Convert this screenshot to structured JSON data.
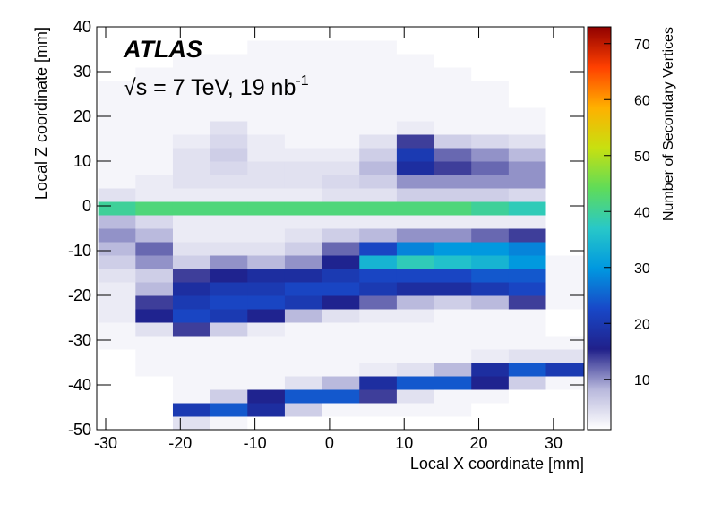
{
  "chart_data": {
    "type": "heatmap",
    "annotations": [
      "ATLAS",
      {
        "text": "√s = 7 TeV, 19 nb",
        "superscript": "-1"
      }
    ],
    "x_label": "Local X coordinate [mm]",
    "y_label": "Local Z coordinate [mm]",
    "colorbar_label": "Number of Secondary Vertices",
    "xlim": [
      -31.2,
      34.1
    ],
    "ylim": [
      -50,
      40
    ],
    "zlim": [
      1,
      73
    ],
    "xticks": [
      -30,
      -20,
      -10,
      0,
      10,
      20,
      30
    ],
    "yticks": [
      -50,
      -40,
      -30,
      -20,
      -10,
      0,
      10,
      20,
      30,
      40
    ],
    "zticks": [
      10,
      20,
      30,
      40,
      50,
      60,
      70
    ],
    "colorscale": [
      "#ffffff",
      "#b8b8dc",
      "#20208a",
      "#1848c8",
      "#0098e0",
      "#28c8c8",
      "#60dc58",
      "#c8e010",
      "#ffb000",
      "#ff4000",
      "#900000"
    ],
    "x_edges": [
      -31,
      -26,
      -21,
      -16,
      -11,
      -6,
      -1,
      4,
      9,
      14,
      19,
      24,
      29,
      34
    ],
    "y_edges": [
      -50,
      -47,
      -44,
      -41,
      -38,
      -35,
      -32,
      -29,
      -26,
      -23,
      -20,
      -17,
      -14,
      -11,
      -8,
      -5,
      -2,
      1,
      4,
      7,
      10,
      13,
      16,
      19,
      22,
      25,
      28,
      31,
      34,
      37,
      40
    ],
    "values": [
      [
        0,
        0,
        4,
        2,
        1,
        1,
        1,
        1,
        1,
        1,
        1,
        0,
        0
      ],
      [
        0,
        0,
        20,
        24,
        18,
        6,
        2,
        2,
        2,
        2,
        1,
        1,
        0
      ],
      [
        0,
        0,
        2,
        6,
        16,
        24,
        24,
        14,
        4,
        2,
        2,
        1,
        1
      ],
      [
        0,
        1,
        2,
        2,
        2,
        4,
        8,
        18,
        24,
        24,
        16,
        6,
        2
      ],
      [
        1,
        2,
        2,
        2,
        2,
        2,
        2,
        3,
        4,
        8,
        18,
        24,
        20
      ],
      [
        1,
        2,
        2,
        2,
        2,
        2,
        2,
        2,
        2,
        2,
        3,
        4,
        4
      ],
      [
        2,
        2,
        2,
        2,
        2,
        2,
        2,
        2,
        2,
        2,
        2,
        2,
        2
      ],
      [
        2,
        4,
        14,
        6,
        3,
        2,
        2,
        2,
        2,
        2,
        2,
        2,
        1
      ],
      [
        3,
        16,
        22,
        20,
        16,
        8,
        4,
        3,
        3,
        2,
        2,
        2,
        1
      ],
      [
        3,
        14,
        20,
        22,
        22,
        20,
        16,
        12,
        8,
        6,
        8,
        14,
        2
      ],
      [
        3,
        8,
        18,
        20,
        20,
        22,
        22,
        20,
        18,
        18,
        20,
        22,
        2
      ],
      [
        4,
        6,
        14,
        16,
        18,
        18,
        20,
        22,
        22,
        22,
        24,
        24,
        2
      ],
      [
        6,
        10,
        6,
        10,
        8,
        10,
        16,
        34,
        38,
        36,
        34,
        30,
        2
      ],
      [
        8,
        12,
        4,
        4,
        4,
        6,
        12,
        22,
        28,
        30,
        30,
        28,
        1
      ],
      [
        10,
        8,
        3,
        3,
        3,
        4,
        6,
        8,
        10,
        10,
        12,
        14,
        1
      ],
      [
        8,
        5,
        3,
        3,
        3,
        3,
        3,
        3,
        3,
        3,
        3,
        3,
        1
      ],
      [
        40,
        42,
        42,
        42,
        42,
        42,
        42,
        42,
        42,
        42,
        40,
        38,
        1
      ],
      [
        4,
        3,
        3,
        3,
        3,
        3,
        4,
        4,
        6,
        6,
        6,
        5,
        1
      ],
      [
        2,
        3,
        4,
        4,
        4,
        4,
        5,
        6,
        10,
        10,
        10,
        10,
        1
      ],
      [
        2,
        2,
        4,
        5,
        4,
        4,
        4,
        8,
        18,
        14,
        12,
        10,
        1
      ],
      [
        2,
        2,
        4,
        6,
        3,
        3,
        3,
        6,
        20,
        12,
        10,
        8,
        1
      ],
      [
        2,
        2,
        3,
        5,
        3,
        2,
        2,
        4,
        14,
        6,
        5,
        4,
        1
      ],
      [
        2,
        2,
        2,
        4,
        2,
        2,
        2,
        2,
        3,
        2,
        2,
        2,
        1
      ],
      [
        2,
        2,
        2,
        2,
        2,
        2,
        2,
        2,
        2,
        2,
        2,
        2,
        1
      ],
      [
        2,
        2,
        2,
        2,
        2,
        2,
        2,
        2,
        2,
        2,
        2,
        1,
        1
      ],
      [
        2,
        2,
        2,
        2,
        2,
        2,
        2,
        2,
        2,
        2,
        2,
        1,
        1
      ],
      [
        1,
        2,
        2,
        2,
        2,
        2,
        2,
        2,
        2,
        2,
        1,
        1,
        1
      ],
      [
        1,
        1,
        2,
        2,
        2,
        2,
        2,
        2,
        2,
        1,
        1,
        1,
        0
      ],
      [
        1,
        1,
        1,
        1,
        2,
        2,
        2,
        2,
        1,
        1,
        1,
        1,
        0
      ],
      [
        1,
        1,
        1,
        1,
        1,
        1,
        1,
        1,
        1,
        1,
        1,
        1,
        0
      ]
    ]
  }
}
